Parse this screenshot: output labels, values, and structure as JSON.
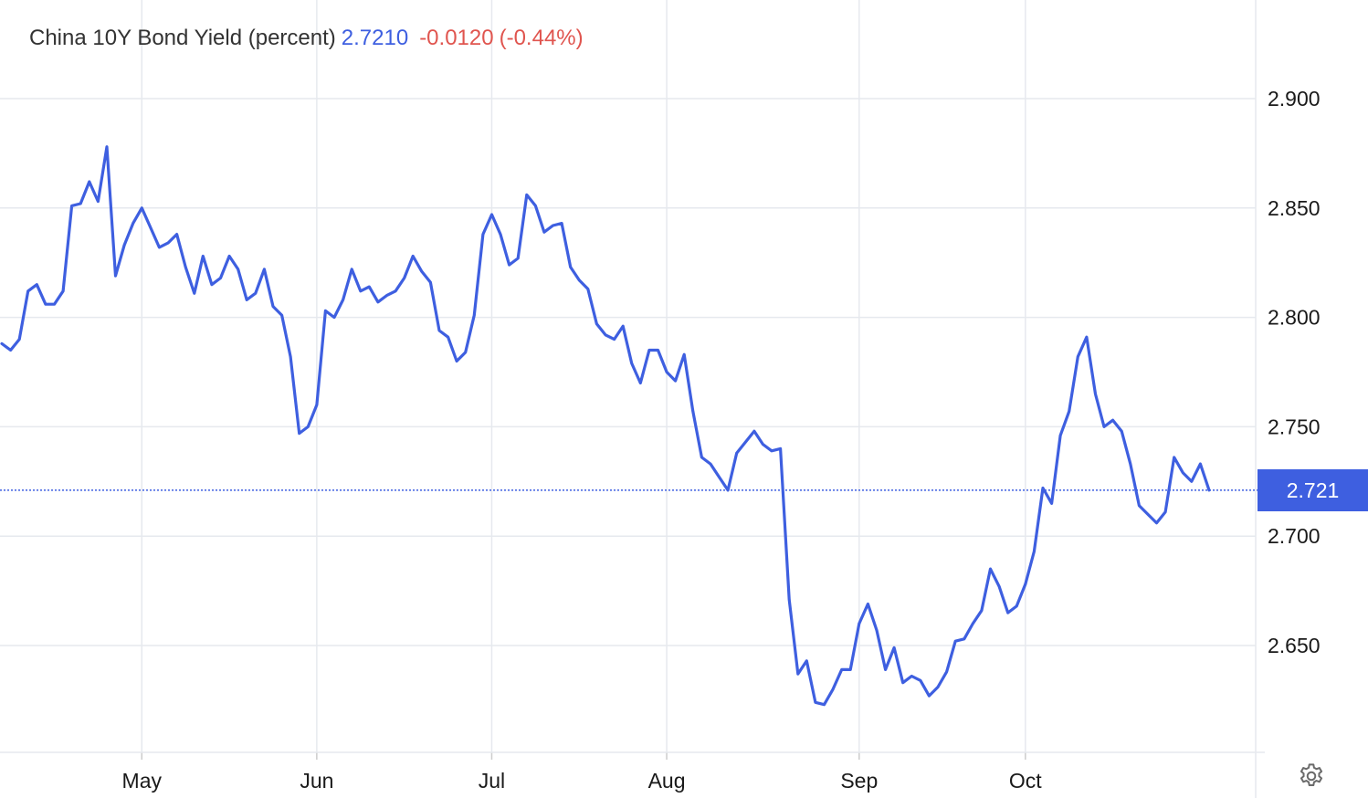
{
  "legend": {
    "title": "China 10Y Bond Yield (percent)",
    "value": "2.7210",
    "change": "-0.0120",
    "change_pct": "(-0.44%)"
  },
  "price_tag": "2.721",
  "colors": {
    "line": "#3e5fe0",
    "negative": "#e0554f",
    "grid": "#e6e9ee",
    "current_line": "#3e5fe0"
  },
  "icons": {
    "settings": "gear-icon"
  },
  "chart_data": {
    "type": "line",
    "title": "China 10Y Bond Yield (percent)",
    "xlabel": "",
    "ylabel": "",
    "ylim": [
      2.6,
      2.95
    ],
    "yticks": [
      {
        "value": 2.9,
        "label": "2.900"
      },
      {
        "value": 2.85,
        "label": "2.850"
      },
      {
        "value": 2.8,
        "label": "2.800"
      },
      {
        "value": 2.75,
        "label": "2.750"
      },
      {
        "value": 2.7,
        "label": "2.700"
      },
      {
        "value": 2.65,
        "label": "2.650"
      }
    ],
    "xticks": [
      {
        "index": 16,
        "label": "May"
      },
      {
        "index": 36,
        "label": "Jun"
      },
      {
        "index": 56,
        "label": "Jul"
      },
      {
        "index": 76,
        "label": "Aug"
      },
      {
        "index": 98,
        "label": "Sep"
      },
      {
        "index": 117,
        "label": "Oct"
      }
    ],
    "grid": true,
    "current_value": 2.721,
    "series": [
      {
        "values": [
          2.788,
          2.785,
          2.79,
          2.812,
          2.815,
          2.806,
          2.806,
          2.812,
          2.851,
          2.852,
          2.862,
          2.853,
          2.878,
          2.819,
          2.833,
          2.843,
          2.85,
          2.841,
          2.832,
          2.834,
          2.838,
          2.823,
          2.811,
          2.828,
          2.815,
          2.818,
          2.828,
          2.822,
          2.808,
          2.811,
          2.822,
          2.805,
          2.801,
          2.782,
          2.747,
          2.75,
          2.76,
          2.803,
          2.8,
          2.808,
          2.822,
          2.812,
          2.814,
          2.807,
          2.81,
          2.812,
          2.818,
          2.828,
          2.821,
          2.816,
          2.794,
          2.791,
          2.78,
          2.784,
          2.801,
          2.838,
          2.847,
          2.838,
          2.824,
          2.827,
          2.856,
          2.851,
          2.839,
          2.842,
          2.843,
          2.823,
          2.817,
          2.813,
          2.797,
          2.792,
          2.79,
          2.796,
          2.779,
          2.77,
          2.785,
          2.785,
          2.775,
          2.771,
          2.783,
          2.757,
          2.736,
          2.733,
          2.727,
          2.721,
          2.738,
          2.743,
          2.748,
          2.742,
          2.739,
          2.74,
          2.671,
          2.637,
          2.643,
          2.624,
          2.623,
          2.63,
          2.639,
          2.639,
          2.66,
          2.669,
          2.657,
          2.639,
          2.649,
          2.633,
          2.636,
          2.634,
          2.627,
          2.631,
          2.638,
          2.652,
          2.653,
          2.66,
          2.666,
          2.685,
          2.677,
          2.665,
          2.668,
          2.678,
          2.693,
          2.722,
          2.715,
          2.746,
          2.757,
          2.782,
          2.791,
          2.765,
          2.75,
          2.753,
          2.748,
          2.733,
          2.714,
          2.71,
          2.706,
          2.711,
          2.736,
          2.729,
          2.725,
          2.733,
          2.721
        ]
      }
    ]
  }
}
